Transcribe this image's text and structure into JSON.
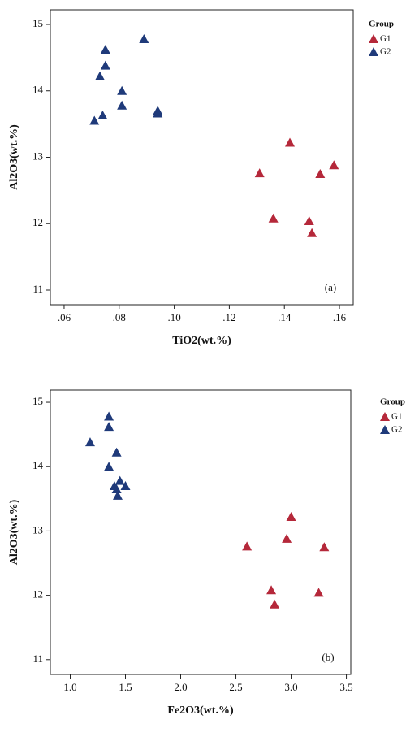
{
  "chart_data": [
    {
      "type": "scatter",
      "xlabel": "TiO2(wt.%)",
      "ylabel": "Al2O3(wt.%)",
      "annotation": "(a)",
      "legend_title": "Group",
      "xlim": [
        0.055,
        0.165
      ],
      "ylim": [
        10.78,
        15.22
      ],
      "xticks": [
        {
          "value": 0.06,
          "label": ".06"
        },
        {
          "value": 0.08,
          "label": ".08"
        },
        {
          "value": 0.1,
          "label": ".10"
        },
        {
          "value": 0.12,
          "label": ".12"
        },
        {
          "value": 0.14,
          "label": ".14"
        },
        {
          "value": 0.16,
          "label": ".16"
        }
      ],
      "yticks": [
        11,
        12,
        13,
        14,
        15
      ],
      "series": [
        {
          "name": "G1",
          "color": "#b5283a",
          "x": [
            0.142,
            0.131,
            0.153,
            0.158,
            0.136,
            0.149,
            0.15
          ],
          "values": [
            13.22,
            12.76,
            12.75,
            12.88,
            12.08,
            12.04,
            11.86
          ]
        },
        {
          "name": "G2",
          "color": "#1f3a7a",
          "x": [
            0.075,
            0.075,
            0.073,
            0.089,
            0.081,
            0.081,
            0.074,
            0.071,
            0.094,
            0.094
          ],
          "values": [
            14.62,
            14.38,
            14.22,
            14.78,
            14.0,
            13.78,
            13.63,
            13.55,
            13.7,
            13.66
          ]
        }
      ]
    },
    {
      "type": "scatter",
      "xlabel": "Fe2O3(wt.%)",
      "ylabel": "Al2O3(wt.%)",
      "annotation": "(b)",
      "legend_title": "Group",
      "xlim": [
        0.82,
        3.54
      ],
      "ylim": [
        10.77,
        15.19
      ],
      "xticks": [
        {
          "value": 1.0,
          "label": "1.0"
        },
        {
          "value": 1.5,
          "label": "1.5"
        },
        {
          "value": 2.0,
          "label": "2.0"
        },
        {
          "value": 2.5,
          "label": "2.5"
        },
        {
          "value": 3.0,
          "label": "3.0"
        },
        {
          "value": 3.5,
          "label": "3.5"
        }
      ],
      "yticks": [
        11,
        12,
        13,
        14,
        15
      ],
      "series": [
        {
          "name": "G1",
          "color": "#b5283a",
          "x": [
            3.0,
            2.96,
            2.6,
            3.3,
            2.82,
            3.25,
            2.85
          ],
          "values": [
            13.22,
            12.88,
            12.76,
            12.75,
            12.08,
            12.04,
            11.86
          ]
        },
        {
          "name": "G2",
          "color": "#1f3a7a",
          "x": [
            1.35,
            1.35,
            1.18,
            1.42,
            1.35,
            1.45,
            1.42,
            1.5,
            1.43,
            1.4
          ],
          "values": [
            14.78,
            14.62,
            14.38,
            14.22,
            14.0,
            13.78,
            13.65,
            13.7,
            13.55,
            13.7
          ]
        }
      ]
    }
  ]
}
